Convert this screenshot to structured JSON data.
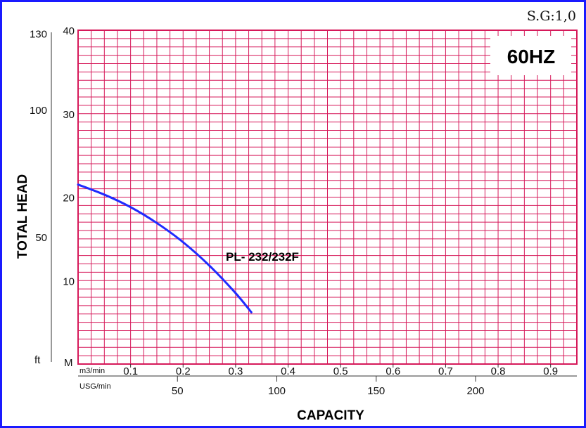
{
  "chart_data": {
    "type": "line",
    "xlabel": "CAPACITY",
    "ylabel": "TOTAL HEAD",
    "top_right_text": "S.G:1,0",
    "frequency_label": "60HZ",
    "x_axes": {
      "primary": {
        "unit": "m3/min",
        "range": [
          0,
          0.95
        ],
        "ticks": [
          "0.1",
          "0.2",
          "0.3",
          "0.4",
          "0.5",
          "0.6",
          "0.7",
          "0.8",
          "0.9"
        ],
        "tick_values": [
          0.1,
          0.2,
          0.3,
          0.4,
          0.5,
          0.6,
          0.7,
          0.8,
          0.9
        ]
      },
      "secondary": {
        "unit": "USG/min",
        "ticks": [
          "50",
          "100",
          "150",
          "200"
        ],
        "tick_values": [
          50,
          100,
          150,
          200
        ]
      }
    },
    "y_axes": {
      "primary": {
        "unit": "M",
        "range": [
          0,
          40
        ],
        "ticks": [
          "10",
          "20",
          "30",
          "40"
        ],
        "tick_values": [
          10,
          20,
          30,
          40
        ]
      },
      "secondary": {
        "unit": "ft",
        "ticks": [
          "50",
          "100",
          "130"
        ],
        "tick_values": [
          50,
          100,
          130
        ]
      }
    },
    "grid": true,
    "grid_color": "#d6195a",
    "series": [
      {
        "name": "PL- 232/232F",
        "color": "#1f2bff",
        "x": [
          0,
          0.05,
          0.1,
          0.15,
          0.2,
          0.25,
          0.3,
          0.33
        ],
        "y": [
          21.5,
          20.3,
          18.8,
          16.9,
          14.6,
          11.8,
          8.5,
          6.2
        ]
      }
    ]
  }
}
